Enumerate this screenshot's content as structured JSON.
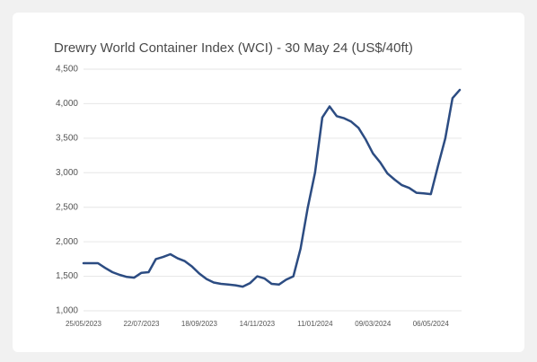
{
  "chart_data": {
    "type": "line",
    "title": "Drewry World Container Index (WCI) - 30 May 24 (US$/40ft)",
    "categories": [
      "25/05/2023",
      null,
      null,
      null,
      null,
      null,
      null,
      null,
      "22/07/2023",
      null,
      null,
      null,
      null,
      null,
      null,
      null,
      "18/09/2023",
      null,
      null,
      null,
      null,
      null,
      null,
      null,
      "14/11/2023",
      null,
      null,
      null,
      null,
      null,
      null,
      null,
      "11/01/2024",
      null,
      null,
      null,
      null,
      null,
      null,
      null,
      "09/03/2024",
      null,
      null,
      null,
      null,
      null,
      null,
      null,
      "06/05/2024",
      null,
      null,
      null,
      null
    ],
    "series": [
      {
        "name": "WCI",
        "color": "#2c4c82",
        "values": [
          1690,
          1690,
          1690,
          1620,
          1560,
          1520,
          1490,
          1480,
          1550,
          1560,
          1750,
          1780,
          1820,
          1760,
          1720,
          1640,
          1540,
          1460,
          1410,
          1390,
          1380,
          1370,
          1350,
          1400,
          1500,
          1470,
          1390,
          1380,
          1450,
          1500,
          1900,
          2500,
          3000,
          3800,
          3960,
          3820,
          3790,
          3740,
          3650,
          3480,
          3280,
          3150,
          2990,
          2900,
          2820,
          2780,
          2710,
          2700,
          2690,
          3100,
          3500,
          4080,
          4200
        ]
      }
    ],
    "ylim": [
      1000,
      4500
    ],
    "yticks": [
      {
        "value": 1000,
        "label": "1,000"
      },
      {
        "value": 1500,
        "label": "1,500"
      },
      {
        "value": 2000,
        "label": "2,000"
      },
      {
        "value": 2500,
        "label": "2,500"
      },
      {
        "value": 3000,
        "label": "3,000"
      },
      {
        "value": 3500,
        "label": "3,500"
      },
      {
        "value": 4000,
        "label": "4,000"
      },
      {
        "value": 4500,
        "label": "4,500"
      }
    ],
    "grid": true
  }
}
